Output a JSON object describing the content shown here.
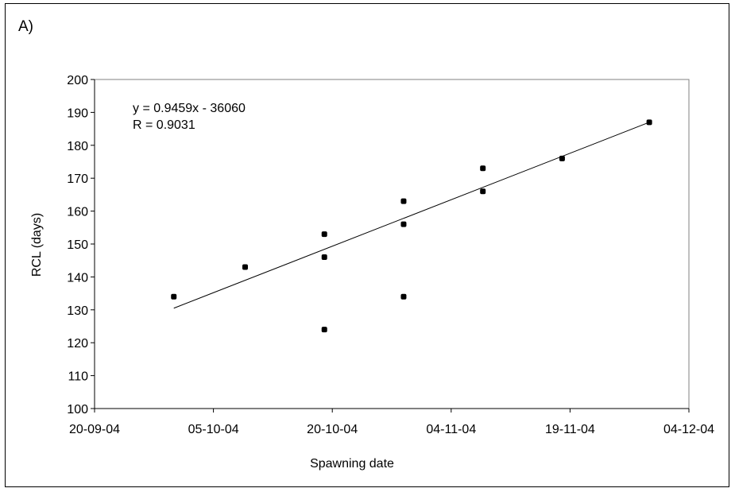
{
  "chart_data": {
    "type": "scatter",
    "panel_label": "A)",
    "title": "",
    "xlabel": "Spawning date",
    "ylabel": "RCL (days)",
    "x_ticks": [
      "20-09-04",
      "05-10-04",
      "20-10-04",
      "04-11-04",
      "19-11-04",
      "04-12-04"
    ],
    "y_ticks": [
      "100",
      "110",
      "120",
      "130",
      "140",
      "150",
      "160",
      "170",
      "180",
      "190",
      "200"
    ],
    "xlim": [
      "2004-09-20",
      "2004-12-04"
    ],
    "ylim": [
      100,
      200
    ],
    "grid": false,
    "points": [
      {
        "x": "2004-09-30",
        "y": 134
      },
      {
        "x": "2004-10-09",
        "y": 143
      },
      {
        "x": "2004-10-19",
        "y": 153
      },
      {
        "x": "2004-10-19",
        "y": 146
      },
      {
        "x": "2004-10-19",
        "y": 124
      },
      {
        "x": "2004-10-29",
        "y": 163
      },
      {
        "x": "2004-10-29",
        "y": 156
      },
      {
        "x": "2004-10-29",
        "y": 134
      },
      {
        "x": "2004-11-08",
        "y": 173
      },
      {
        "x": "2004-11-08",
        "y": 166
      },
      {
        "x": "2004-11-18",
        "y": 176
      },
      {
        "x": "2004-11-29",
        "y": 187
      }
    ],
    "trendline": {
      "type": "linear",
      "from": {
        "x": "2004-09-30",
        "y": 130.5
      },
      "to": {
        "x": "2004-11-29",
        "y": 187
      }
    },
    "annotations": [
      "y = 0.9459x - 36060",
      "R = 0.9031"
    ]
  }
}
